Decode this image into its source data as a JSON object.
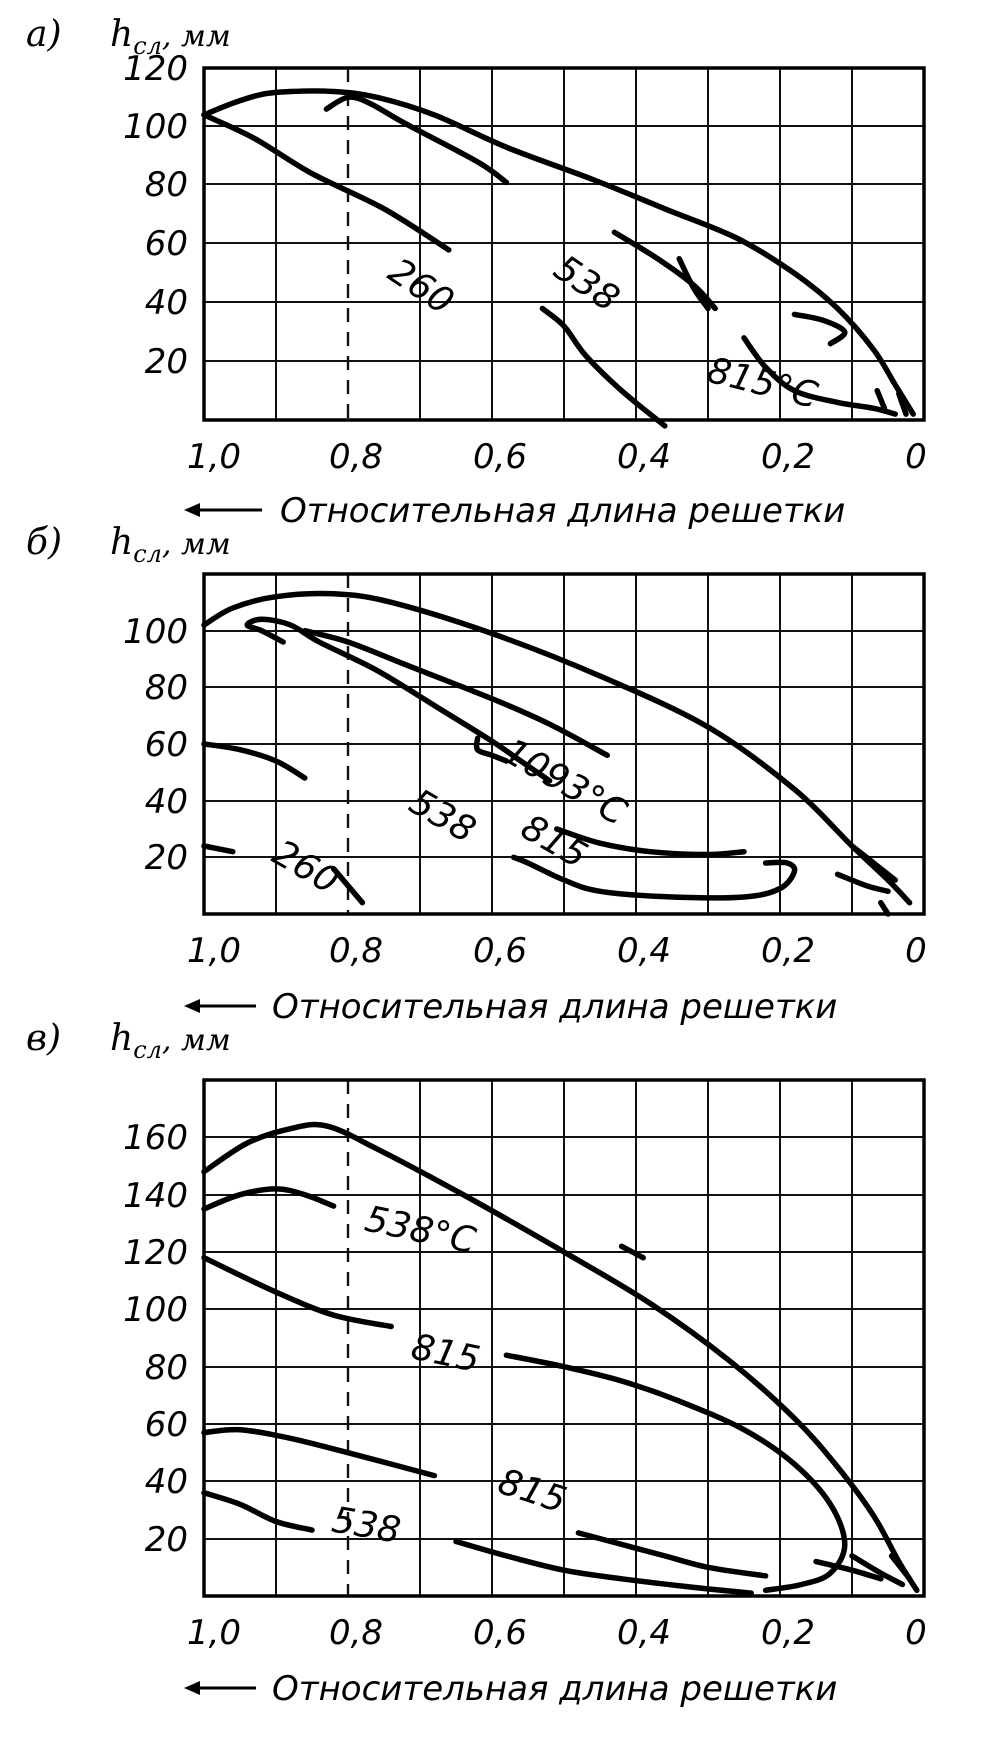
{
  "chart_data": [
    {
      "type": "line",
      "panel_label": "а)",
      "ylabel": "h",
      "ylabel_sub": "сл",
      "ylabel_unit": ", мм",
      "xlabel": "Относительная длина решетки",
      "x_ticks": [
        "1,0",
        "0,8",
        "0,6",
        "0,4",
        "0,2",
        "0"
      ],
      "y_ticks": [
        "120",
        "100",
        "80",
        "60",
        "40",
        "20"
      ],
      "xlim": [
        1.0,
        0.0
      ],
      "ylim": [
        0,
        120
      ],
      "contour_labels": [
        {
          "text": "260",
          "x": 0.7,
          "y": 45,
          "angle": 34
        },
        {
          "text": "538",
          "x": 0.47,
          "y": 46,
          "angle": 34
        },
        {
          "text": "815°C",
          "x": 0.225,
          "y": 12,
          "angle": 14
        }
      ],
      "series": [
        {
          "points": [
            [
              1.0,
              104
            ],
            [
              0.93,
              96
            ],
            [
              0.85,
              84
            ],
            [
              0.75,
              72
            ],
            [
              0.66,
              58
            ]
          ]
        },
        {
          "points": [
            [
              0.53,
              38
            ],
            [
              0.5,
              32
            ],
            [
              0.47,
              22
            ],
            [
              0.42,
              10
            ],
            [
              0.36,
              -2
            ]
          ]
        },
        {
          "points": [
            [
              1.0,
              104
            ],
            [
              0.96,
              108
            ],
            [
              0.92,
              111
            ],
            [
              0.88,
              112
            ],
            [
              0.82,
              112
            ],
            [
              0.76,
              110
            ],
            [
              0.68,
              104
            ],
            [
              0.58,
              93
            ],
            [
              0.46,
              82
            ],
            [
              0.36,
              72
            ],
            [
              0.26,
              62
            ],
            [
              0.18,
              50
            ],
            [
              0.12,
              38
            ],
            [
              0.07,
              24
            ],
            [
              0.04,
              12
            ],
            [
              0.015,
              2
            ]
          ]
        },
        {
          "points": [
            [
              0.83,
              106
            ],
            [
              0.8,
              110
            ],
            [
              0.77,
              108
            ],
            [
              0.72,
              101
            ],
            [
              0.62,
              88
            ],
            [
              0.58,
              81
            ]
          ]
        },
        {
          "points": [
            [
              0.43,
              64
            ],
            [
              0.37,
              55
            ],
            [
              0.32,
              46
            ],
            [
              0.29,
              38
            ]
          ]
        },
        {
          "points": [
            [
              0.25,
              28
            ],
            [
              0.22,
              18
            ],
            [
              0.18,
              10
            ],
            [
              0.12,
              6
            ],
            [
              0.07,
              4
            ],
            [
              0.04,
              2
            ]
          ]
        },
        {
          "points": [
            [
              0.34,
              55
            ],
            [
              0.32,
              45
            ],
            [
              0.3,
              38
            ]
          ]
        },
        {
          "points": [
            [
              0.18,
              36
            ],
            [
              0.14,
              34
            ],
            [
              0.11,
              30
            ],
            [
              0.13,
              26
            ]
          ]
        },
        {
          "points": [
            [
              0.065,
              10
            ],
            [
              0.055,
              4
            ]
          ]
        },
        {
          "points": [
            [
              0.035,
              9
            ],
            [
              0.025,
              2
            ]
          ]
        }
      ]
    },
    {
      "type": "line",
      "panel_label": "б)",
      "ylabel": "h",
      "ylabel_sub": "сл",
      "ylabel_unit": ", мм",
      "xlabel": "Относительная длина решетки",
      "x_ticks": [
        "1,0",
        "0,8",
        "0,6",
        "0,4",
        "0,2",
        "0"
      ],
      "y_ticks": [
        "100",
        "80",
        "60",
        "40",
        "20"
      ],
      "xlim": [
        1.0,
        0.0
      ],
      "ylim": [
        0,
        120
      ],
      "contour_labels": [
        {
          "text": "260",
          "x": 0.86,
          "y": 16,
          "angle": 30
        },
        {
          "text": "538",
          "x": 0.67,
          "y": 34,
          "angle": 30
        },
        {
          "text": "815",
          "x": 0.515,
          "y": 25,
          "angle": 30
        },
        {
          "text": "1093°C",
          "x": 0.5,
          "y": 46,
          "angle": 30
        }
      ],
      "series": [
        {
          "points": [
            [
              1.0,
              24
            ],
            [
              0.96,
              22
            ]
          ]
        },
        {
          "points": [
            [
              0.82,
              16
            ],
            [
              0.8,
              10
            ],
            [
              0.78,
              4
            ]
          ]
        },
        {
          "points": [
            [
              1.0,
              60
            ],
            [
              0.95,
              58
            ],
            [
              0.9,
              54
            ],
            [
              0.86,
              48
            ]
          ]
        },
        {
          "points": [
            [
              0.57,
              20
            ],
            [
              0.55,
              18
            ],
            [
              0.5,
              12
            ],
            [
              0.45,
              8
            ],
            [
              0.35,
              6
            ],
            [
              0.25,
              6
            ],
            [
              0.2,
              9
            ],
            [
              0.18,
              15
            ],
            [
              0.19,
              18
            ],
            [
              0.22,
              18
            ]
          ]
        },
        {
          "points": [
            [
              1.0,
              102
            ],
            [
              0.96,
              108
            ],
            [
              0.9,
              112
            ],
            [
              0.82,
              113
            ],
            [
              0.74,
              110
            ],
            [
              0.6,
              99
            ],
            [
              0.45,
              84
            ],
            [
              0.3,
              66
            ],
            [
              0.18,
              44
            ],
            [
              0.1,
              24
            ],
            [
              0.05,
              12
            ],
            [
              0.02,
              4
            ]
          ]
        },
        {
          "points": [
            [
              0.89,
              96
            ],
            [
              0.92,
              100
            ],
            [
              0.94,
              102
            ],
            [
              0.92,
              104
            ],
            [
              0.88,
              102
            ],
            [
              0.84,
              96
            ],
            [
              0.76,
              86
            ],
            [
              0.67,
              72
            ],
            [
              0.6,
              61
            ],
            [
              0.56,
              54
            ],
            [
              0.52,
              47
            ]
          ]
        },
        {
          "points": [
            [
              0.86,
              100
            ],
            [
              0.8,
              96
            ],
            [
              0.72,
              88
            ],
            [
              0.6,
              76
            ],
            [
              0.52,
              67
            ],
            [
              0.44,
              56
            ]
          ]
        },
        {
          "points": [
            [
              0.51,
              30
            ],
            [
              0.45,
              25
            ],
            [
              0.38,
              22
            ],
            [
              0.3,
              21
            ],
            [
              0.25,
              22
            ]
          ]
        },
        {
          "points": [
            [
              0.62,
              62
            ],
            [
              0.62,
              58
            ],
            [
              0.6,
              56
            ],
            [
              0.58,
              54
            ]
          ]
        },
        {
          "points": [
            [
              0.1,
              24
            ],
            [
              0.07,
              18
            ],
            [
              0.04,
              12
            ]
          ]
        },
        {
          "points": [
            [
              0.06,
              4
            ],
            [
              0.05,
              0
            ]
          ]
        },
        {
          "points": [
            [
              0.12,
              14
            ],
            [
              0.08,
              10
            ],
            [
              0.05,
              8
            ]
          ]
        }
      ]
    },
    {
      "type": "line",
      "panel_label": "в)",
      "ylabel": "h",
      "ylabel_sub": "сл",
      "ylabel_unit": ", мм",
      "xlabel": "Относительная длина решетки",
      "x_ticks": [
        "1,0",
        "0,8",
        "0,6",
        "0,4",
        "0,2",
        "0"
      ],
      "y_ticks": [
        "160",
        "140",
        "120",
        "100",
        "80",
        "60",
        "40",
        "20"
      ],
      "xlim": [
        1.0,
        0.0
      ],
      "ylim": [
        0,
        180
      ],
      "contour_labels": [
        {
          "text": "538°C",
          "x": 0.7,
          "y": 127,
          "angle": 12
        },
        {
          "text": "815",
          "x": 0.665,
          "y": 84,
          "angle": 12
        },
        {
          "text": "815",
          "x": 0.545,
          "y": 36,
          "angle": 18
        },
        {
          "text": "538",
          "x": 0.775,
          "y": 24,
          "angle": 10
        }
      ],
      "series": [
        {
          "points": [
            [
              1.0,
              148
            ],
            [
              0.94,
              158
            ],
            [
              0.88,
              163
            ],
            [
              0.83,
              164
            ],
            [
              0.76,
              156
            ],
            [
              0.64,
              140
            ],
            [
              0.5,
              120
            ],
            [
              0.38,
              102
            ],
            [
              0.27,
              82
            ],
            [
              0.18,
              62
            ],
            [
              0.12,
              45
            ],
            [
              0.07,
              28
            ],
            [
              0.035,
              12
            ],
            [
              0.01,
              2
            ]
          ]
        },
        {
          "points": [
            [
              1.0,
              135
            ],
            [
              0.95,
              140
            ],
            [
              0.9,
              142
            ],
            [
              0.86,
              140
            ],
            [
              0.82,
              136
            ]
          ]
        },
        {
          "points": [
            [
              1.0,
              118
            ],
            [
              0.9,
              106
            ],
            [
              0.82,
              98
            ],
            [
              0.74,
              94
            ]
          ]
        },
        {
          "points": [
            [
              0.58,
              84
            ],
            [
              0.5,
              80
            ],
            [
              0.42,
              75
            ],
            [
              0.34,
              68
            ],
            [
              0.25,
              58
            ],
            [
              0.18,
              46
            ],
            [
              0.13,
              32
            ],
            [
              0.11,
              18
            ],
            [
              0.13,
              8
            ],
            [
              0.17,
              4
            ],
            [
              0.22,
              2
            ]
          ]
        },
        {
          "points": [
            [
              1.0,
              57
            ],
            [
              0.95,
              58
            ],
            [
              0.88,
              55
            ],
            [
              0.8,
              50
            ],
            [
              0.74,
              46
            ],
            [
              0.68,
              42
            ]
          ]
        },
        {
          "points": [
            [
              0.48,
              22
            ],
            [
              0.42,
              18
            ],
            [
              0.36,
              14
            ],
            [
              0.3,
              10
            ],
            [
              0.22,
              7
            ]
          ]
        },
        {
          "points": [
            [
              0.42,
              122
            ],
            [
              0.39,
              118
            ]
          ]
        },
        {
          "points": [
            [
              1.0,
              36
            ],
            [
              0.95,
              32
            ],
            [
              0.9,
              26
            ],
            [
              0.85,
              23
            ]
          ]
        },
        {
          "points": [
            [
              0.65,
              19
            ],
            [
              0.58,
              14
            ],
            [
              0.5,
              9
            ],
            [
              0.42,
              6
            ],
            [
              0.32,
              3
            ],
            [
              0.24,
              1
            ]
          ]
        },
        {
          "points": [
            [
              0.1,
              14
            ],
            [
              0.06,
              8
            ],
            [
              0.03,
              4
            ]
          ]
        },
        {
          "points": [
            [
              0.15,
              12
            ],
            [
              0.1,
              9
            ],
            [
              0.06,
              6
            ]
          ]
        },
        {
          "points": [
            [
              0.045,
              14
            ],
            [
              0.02,
              6
            ]
          ]
        }
      ]
    }
  ]
}
